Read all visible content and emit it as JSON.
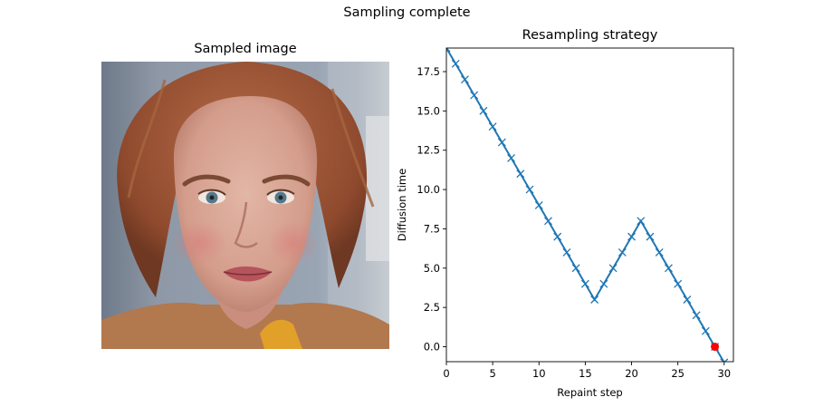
{
  "figure": {
    "suptitle": "Sampling complete"
  },
  "image_panel": {
    "title": "Sampled image",
    "image_icon": "portrait-photo"
  },
  "colors": {
    "line": "#1f77b4",
    "current_point": "#ff0000"
  },
  "chart_data": {
    "type": "line",
    "title": "Resampling strategy",
    "xlabel": "Repaint step",
    "ylabel": "Diffusion time",
    "xlim": [
      0,
      31
    ],
    "ylim": [
      -0.95,
      19
    ],
    "xticks": [
      0,
      5,
      10,
      15,
      20,
      25,
      30
    ],
    "xtick_labels": [
      "0",
      "5",
      "10",
      "15",
      "20",
      "25",
      "30"
    ],
    "yticks": [
      0.0,
      2.5,
      5.0,
      7.5,
      10.0,
      12.5,
      15.0,
      17.5
    ],
    "ytick_labels": [
      "0.0",
      "2.5",
      "5.0",
      "7.5",
      "10.0",
      "12.5",
      "15.0",
      "17.5"
    ],
    "grid": false,
    "series": [
      {
        "marker": "x",
        "x": [
          0,
          1,
          2,
          3,
          4,
          5,
          6,
          7,
          8,
          9,
          10,
          11,
          12,
          13,
          14,
          15,
          16,
          17,
          18,
          19,
          20,
          21,
          22,
          23,
          24,
          25,
          26,
          27,
          28,
          29,
          30
        ],
        "y": [
          19,
          18,
          17,
          16,
          15,
          14,
          13,
          12,
          11,
          10,
          9,
          8,
          7,
          6,
          5,
          4,
          3,
          4,
          5,
          6,
          7,
          8,
          7,
          6,
          5,
          4,
          3,
          2,
          1,
          0,
          -1
        ]
      }
    ],
    "current_point": {
      "x": 29,
      "y": 0
    }
  }
}
